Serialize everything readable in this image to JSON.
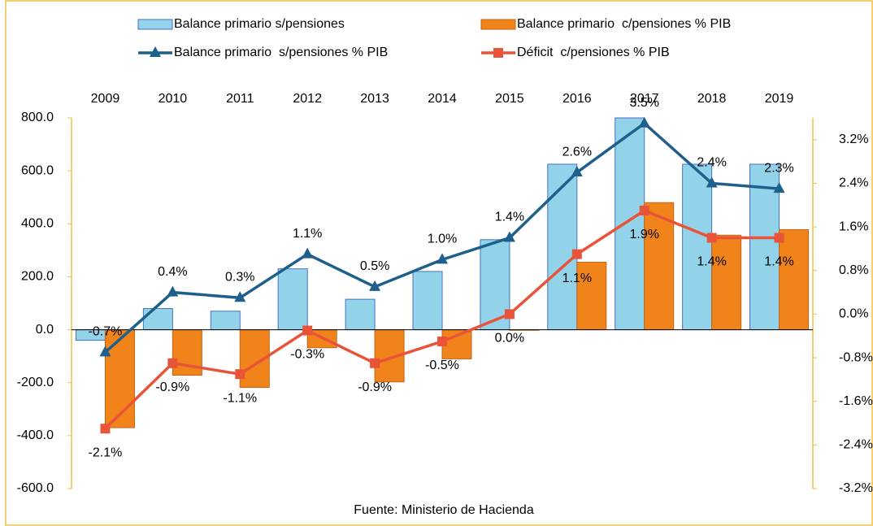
{
  "chart_data": {
    "type": "bar",
    "source": "Fuente: Ministerio de Hacienda",
    "categories": [
      "2009",
      "2010",
      "2011",
      "2012",
      "2013",
      "2014",
      "2015",
      "2016",
      "2017",
      "2018",
      "2019"
    ],
    "series": [
      {
        "name": "Balance primario s/pensiones",
        "type": "bar",
        "color": "#93d3ea",
        "values": [
          -40,
          80,
          70,
          230,
          115,
          220,
          340,
          625,
          800,
          625,
          625
        ]
      },
      {
        "name": "Balance primario  c/pensiones % PIB",
        "type": "bar",
        "color": "#f0841a",
        "values": [
          -370,
          -172,
          -218,
          -68,
          -197,
          -110,
          -2,
          255,
          480,
          357,
          378
        ]
      },
      {
        "name": "Balance primario  s/pensiones % PIB",
        "type": "line",
        "axis": "y2",
        "color": "#1f5f8b",
        "marker": "triangle",
        "values": [
          -0.7,
          0.4,
          0.3,
          1.1,
          0.5,
          1.0,
          1.4,
          2.6,
          3.5,
          2.4,
          2.3
        ],
        "value_labels": [
          "-0.7%",
          "0.4%",
          "0.3%",
          "1.1%",
          "0.5%",
          "1.0%",
          "1.4%",
          "2.6%",
          "3.5%",
          "2.4%",
          "2.3%"
        ]
      },
      {
        "name": "Déficit  c/pensiones % PIB",
        "type": "line",
        "axis": "y2",
        "color": "#e8533a",
        "marker": "square",
        "values": [
          -2.1,
          -0.9,
          -1.1,
          -0.3,
          -0.9,
          -0.5,
          0.0,
          1.1,
          1.9,
          1.4,
          1.4
        ],
        "value_labels": [
          "-2.1%",
          "-0.9%",
          "-1.1%",
          "-0.3%",
          "-0.9%",
          "-0.5%",
          "0.0%",
          "1.1%",
          "1.9%",
          "1.4%",
          "1.4%"
        ]
      }
    ],
    "ylim": [
      -600,
      800
    ],
    "yticks": [
      {
        "value": -600,
        "label": "-600.0"
      },
      {
        "value": -400,
        "label": "-400.0"
      },
      {
        "value": -200,
        "label": "-200.0"
      },
      {
        "value": 0,
        "label": "0.0"
      },
      {
        "value": 200,
        "label": "200.0"
      },
      {
        "value": 400,
        "label": "400.0"
      },
      {
        "value": 600,
        "label": "600.0"
      },
      {
        "value": 800,
        "label": "800.0"
      }
    ],
    "y2lim": [
      -3.2,
      3.6
    ],
    "y2ticks": [
      {
        "value": -3.2,
        "label": "-3.2%"
      },
      {
        "value": -2.4,
        "label": "-2.4%"
      },
      {
        "value": -1.6,
        "label": "-1.6%"
      },
      {
        "value": -0.8,
        "label": "-0.8%"
      },
      {
        "value": 0,
        "label": "0.0%"
      },
      {
        "value": 0.8,
        "label": "0.8%"
      },
      {
        "value": 1.6,
        "label": "1.6%"
      },
      {
        "value": 2.4,
        "label": "2.4%"
      },
      {
        "value": 3.2,
        "label": "3.2%"
      }
    ],
    "grid": false
  }
}
